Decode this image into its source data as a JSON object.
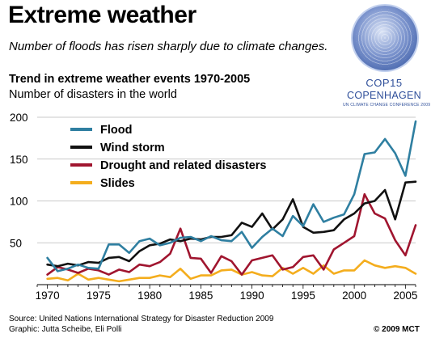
{
  "header": {
    "title": "Extreme weather",
    "subtitle": "Number of floods has risen sharply due to climate changes."
  },
  "logo": {
    "line1": "COP15",
    "line2": "COPENHAGEN",
    "line3": "UN CLIMATE CHANGE CONFERENCE 2009",
    "color": "#2f4f9a"
  },
  "footer": {
    "source": "Source: United Nations International Strategy for Disaster Reduction 2009",
    "graphic": "Graphic: Jutta Scheibe, Eli Polli",
    "copyright": "© 2009 MCT"
  },
  "chart_data": {
    "type": "line",
    "title": "Trend in extreme weather events 1970-2005",
    "ylabel": "Number of disasters in the world",
    "xlabel": "",
    "x": [
      1970,
      1971,
      1972,
      1973,
      1974,
      1975,
      1976,
      1977,
      1978,
      1979,
      1980,
      1981,
      1982,
      1983,
      1984,
      1985,
      1986,
      1987,
      1988,
      1989,
      1990,
      1991,
      1992,
      1993,
      1994,
      1995,
      1996,
      1997,
      1998,
      1999,
      2000,
      2001,
      2002,
      2003,
      2004,
      2005,
      2006
    ],
    "xlim": [
      1969,
      2006
    ],
    "ylim": [
      0,
      200
    ],
    "xticks": [
      1970,
      1975,
      1980,
      1985,
      1990,
      1995,
      2000,
      2005
    ],
    "yticks": [
      50,
      100,
      150,
      200
    ],
    "grid": "horizontal",
    "legend_position": "top-left",
    "series": [
      {
        "name": "Flood",
        "color": "#2f7fa1",
        "values": [
          32,
          16,
          19,
          24,
          20,
          19,
          48,
          48,
          38,
          52,
          55,
          47,
          50,
          56,
          57,
          52,
          58,
          53,
          52,
          63,
          44,
          57,
          67,
          58,
          82,
          70,
          96,
          75,
          80,
          84,
          108,
          156,
          158,
          174,
          157,
          130,
          195
        ]
      },
      {
        "name": "Wind storm",
        "color": "#111111",
        "values": [
          24,
          22,
          25,
          23,
          27,
          26,
          32,
          33,
          28,
          40,
          47,
          49,
          54,
          52,
          55,
          54,
          57,
          57,
          59,
          74,
          69,
          85,
          66,
          78,
          102,
          69,
          62,
          63,
          65,
          78,
          85,
          97,
          100,
          113,
          78,
          122,
          123
        ]
      },
      {
        "name": "Drought and related disasters",
        "color": "#a0152f",
        "values": [
          12,
          21,
          18,
          14,
          19,
          17,
          12,
          18,
          15,
          24,
          22,
          27,
          37,
          67,
          32,
          31,
          14,
          34,
          28,
          12,
          29,
          32,
          35,
          18,
          21,
          33,
          35,
          18,
          42,
          50,
          58,
          108,
          85,
          79,
          53,
          35,
          71
        ]
      },
      {
        "name": "Slides",
        "color": "#f4ad1d",
        "values": [
          7,
          8,
          5,
          13,
          6,
          8,
          6,
          4,
          6,
          8,
          8,
          11,
          9,
          19,
          7,
          11,
          11,
          17,
          18,
          12,
          15,
          11,
          10,
          20,
          13,
          20,
          13,
          23,
          13,
          17,
          17,
          29,
          23,
          20,
          22,
          20,
          13
        ]
      }
    ]
  }
}
